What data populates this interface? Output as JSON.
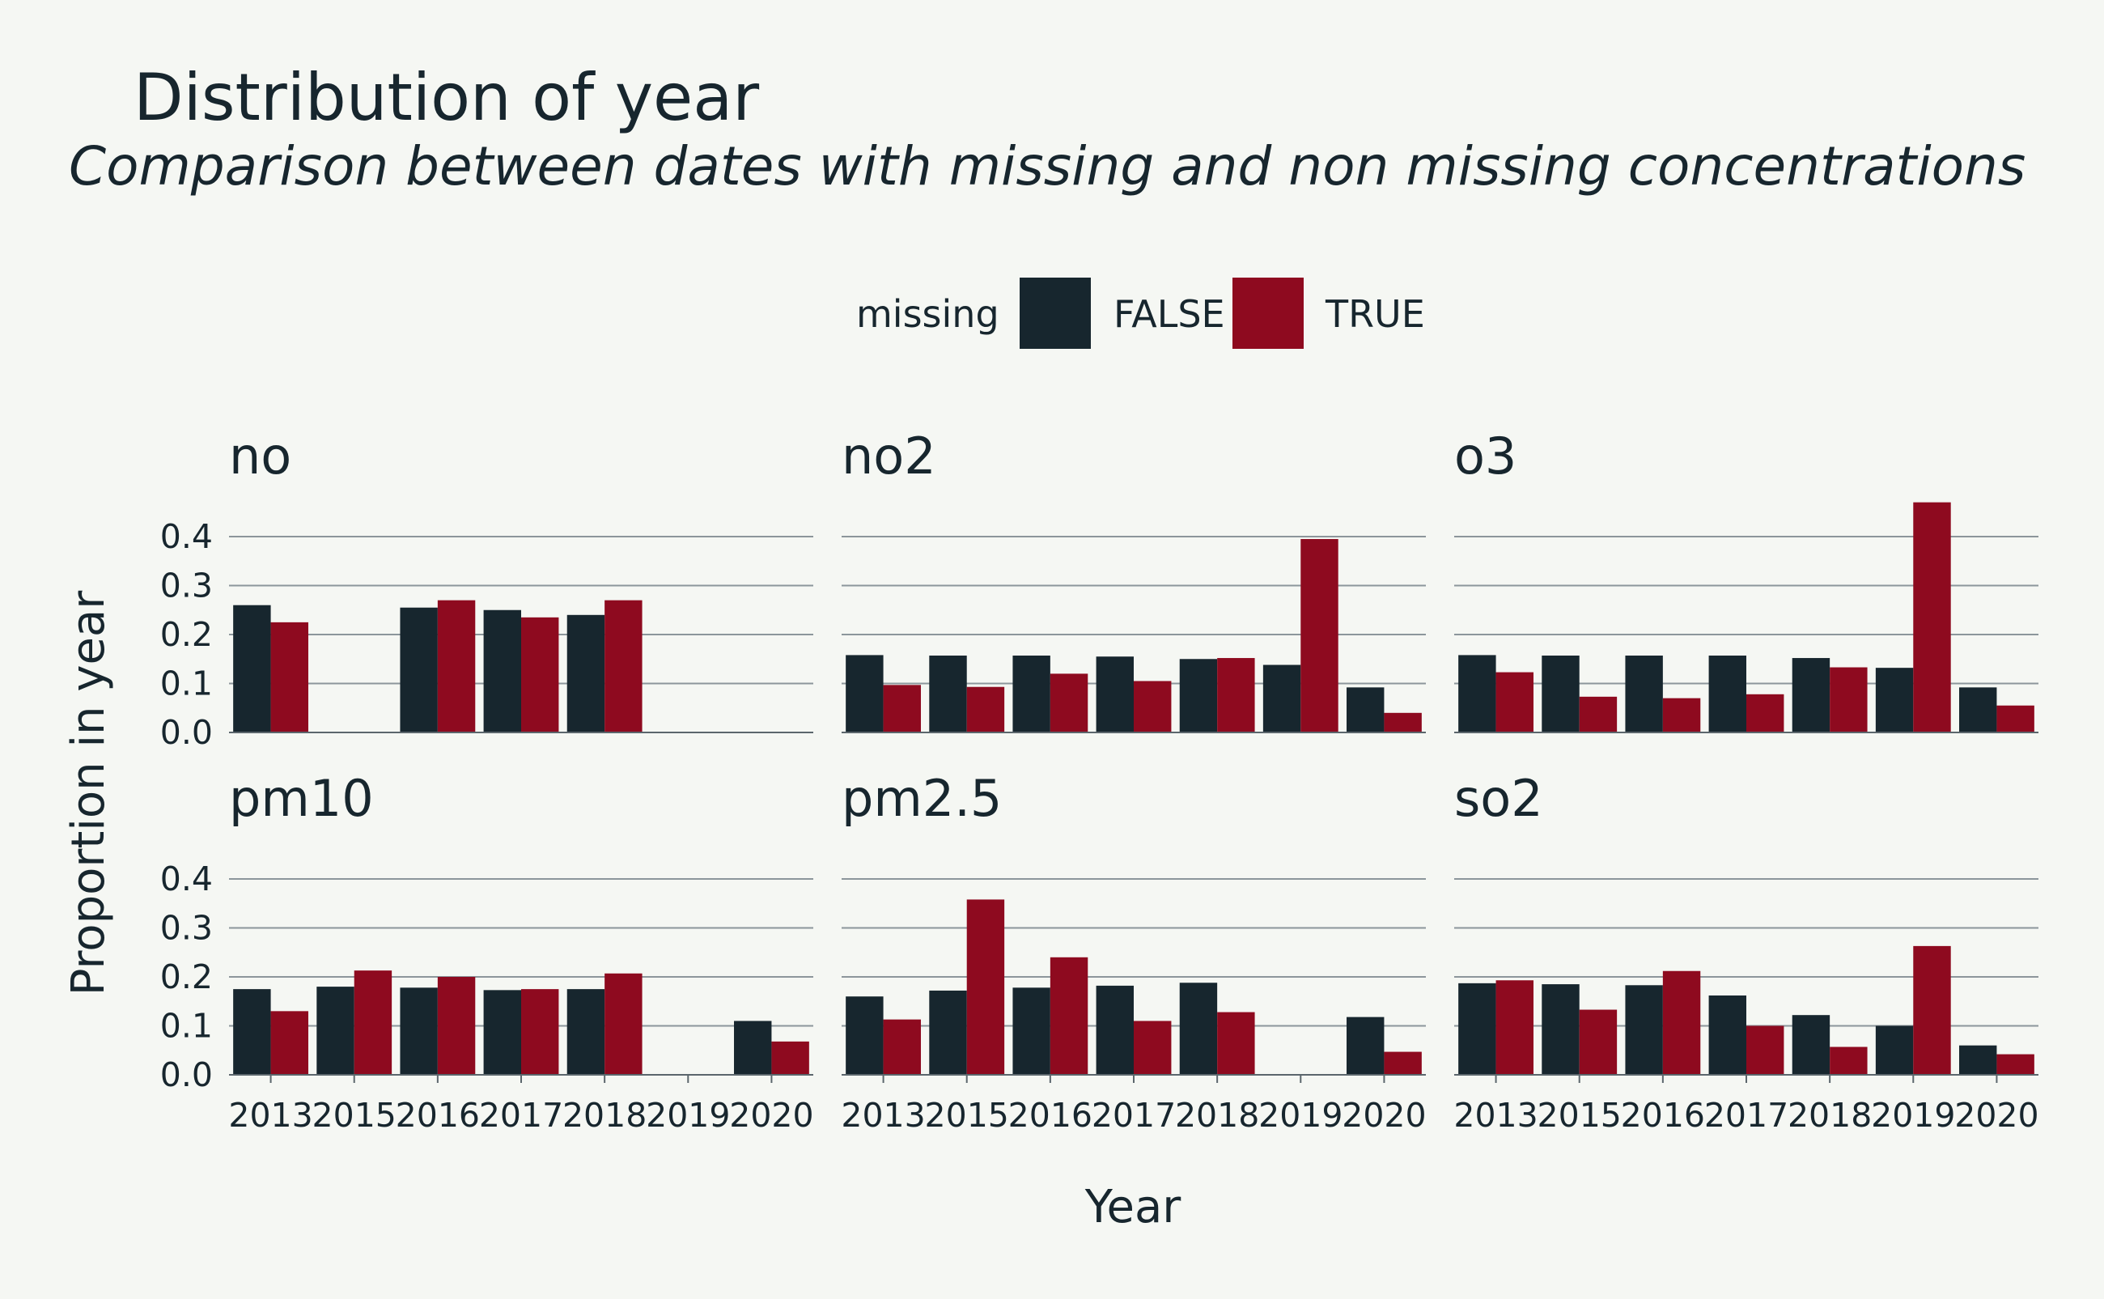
{
  "chart_data": {
    "type": "bar",
    "title": "Distribution of year",
    "subtitle": "Comparison between dates with missing and non missing concentrations",
    "xlabel": "Year",
    "ylabel": "Proportion in year",
    "ylim": [
      0,
      0.45
    ],
    "yticks": [
      "0.0",
      "0.1",
      "0.2",
      "0.3",
      "0.4"
    ],
    "categories": [
      "2013",
      "2015",
      "2016",
      "2017",
      "2018",
      "2019",
      "2020"
    ],
    "grid": true,
    "legend": {
      "position": "top",
      "title": "missing",
      "entries": [
        {
          "name": "FALSE",
          "color": "#17262e"
        },
        {
          "name": "TRUE",
          "color": "#8e0a1f"
        }
      ]
    },
    "panels": [
      {
        "name": "no",
        "series": [
          {
            "name": "FALSE",
            "values": [
              0.26,
              null,
              0.255,
              0.25,
              0.24,
              null,
              null
            ]
          },
          {
            "name": "TRUE",
            "values": [
              0.225,
              null,
              0.27,
              0.235,
              0.27,
              null,
              null
            ]
          }
        ]
      },
      {
        "name": "no2",
        "series": [
          {
            "name": "FALSE",
            "values": [
              0.158,
              0.157,
              0.157,
              0.155,
              0.15,
              0.138,
              0.092
            ]
          },
          {
            "name": "TRUE",
            "values": [
              0.097,
              0.093,
              0.12,
              0.105,
              0.152,
              0.395,
              0.04
            ]
          }
        ]
      },
      {
        "name": "o3",
        "series": [
          {
            "name": "FALSE",
            "values": [
              0.158,
              0.157,
              0.157,
              0.157,
              0.152,
              0.132,
              0.092
            ]
          },
          {
            "name": "TRUE",
            "values": [
              0.123,
              0.073,
              0.07,
              0.078,
              0.133,
              0.47,
              0.055
            ]
          }
        ]
      },
      {
        "name": "pm10",
        "series": [
          {
            "name": "FALSE",
            "values": [
              0.175,
              0.18,
              0.178,
              0.173,
              0.175,
              null,
              0.11
            ]
          },
          {
            "name": "TRUE",
            "values": [
              0.13,
              0.213,
              0.2,
              0.175,
              0.207,
              null,
              0.068
            ]
          }
        ]
      },
      {
        "name": "pm2.5",
        "series": [
          {
            "name": "FALSE",
            "values": [
              0.16,
              0.172,
              0.178,
              0.182,
              0.188,
              null,
              0.118
            ]
          },
          {
            "name": "TRUE",
            "values": [
              0.113,
              0.358,
              0.24,
              0.11,
              0.128,
              null,
              0.047
            ]
          }
        ]
      },
      {
        "name": "so2",
        "series": [
          {
            "name": "FALSE",
            "values": [
              0.187,
              0.185,
              0.183,
              0.162,
              0.122,
              0.1,
              0.06
            ]
          },
          {
            "name": "TRUE",
            "values": [
              0.193,
              0.133,
              0.212,
              0.1,
              0.057,
              0.263,
              0.042
            ]
          }
        ]
      }
    ]
  }
}
